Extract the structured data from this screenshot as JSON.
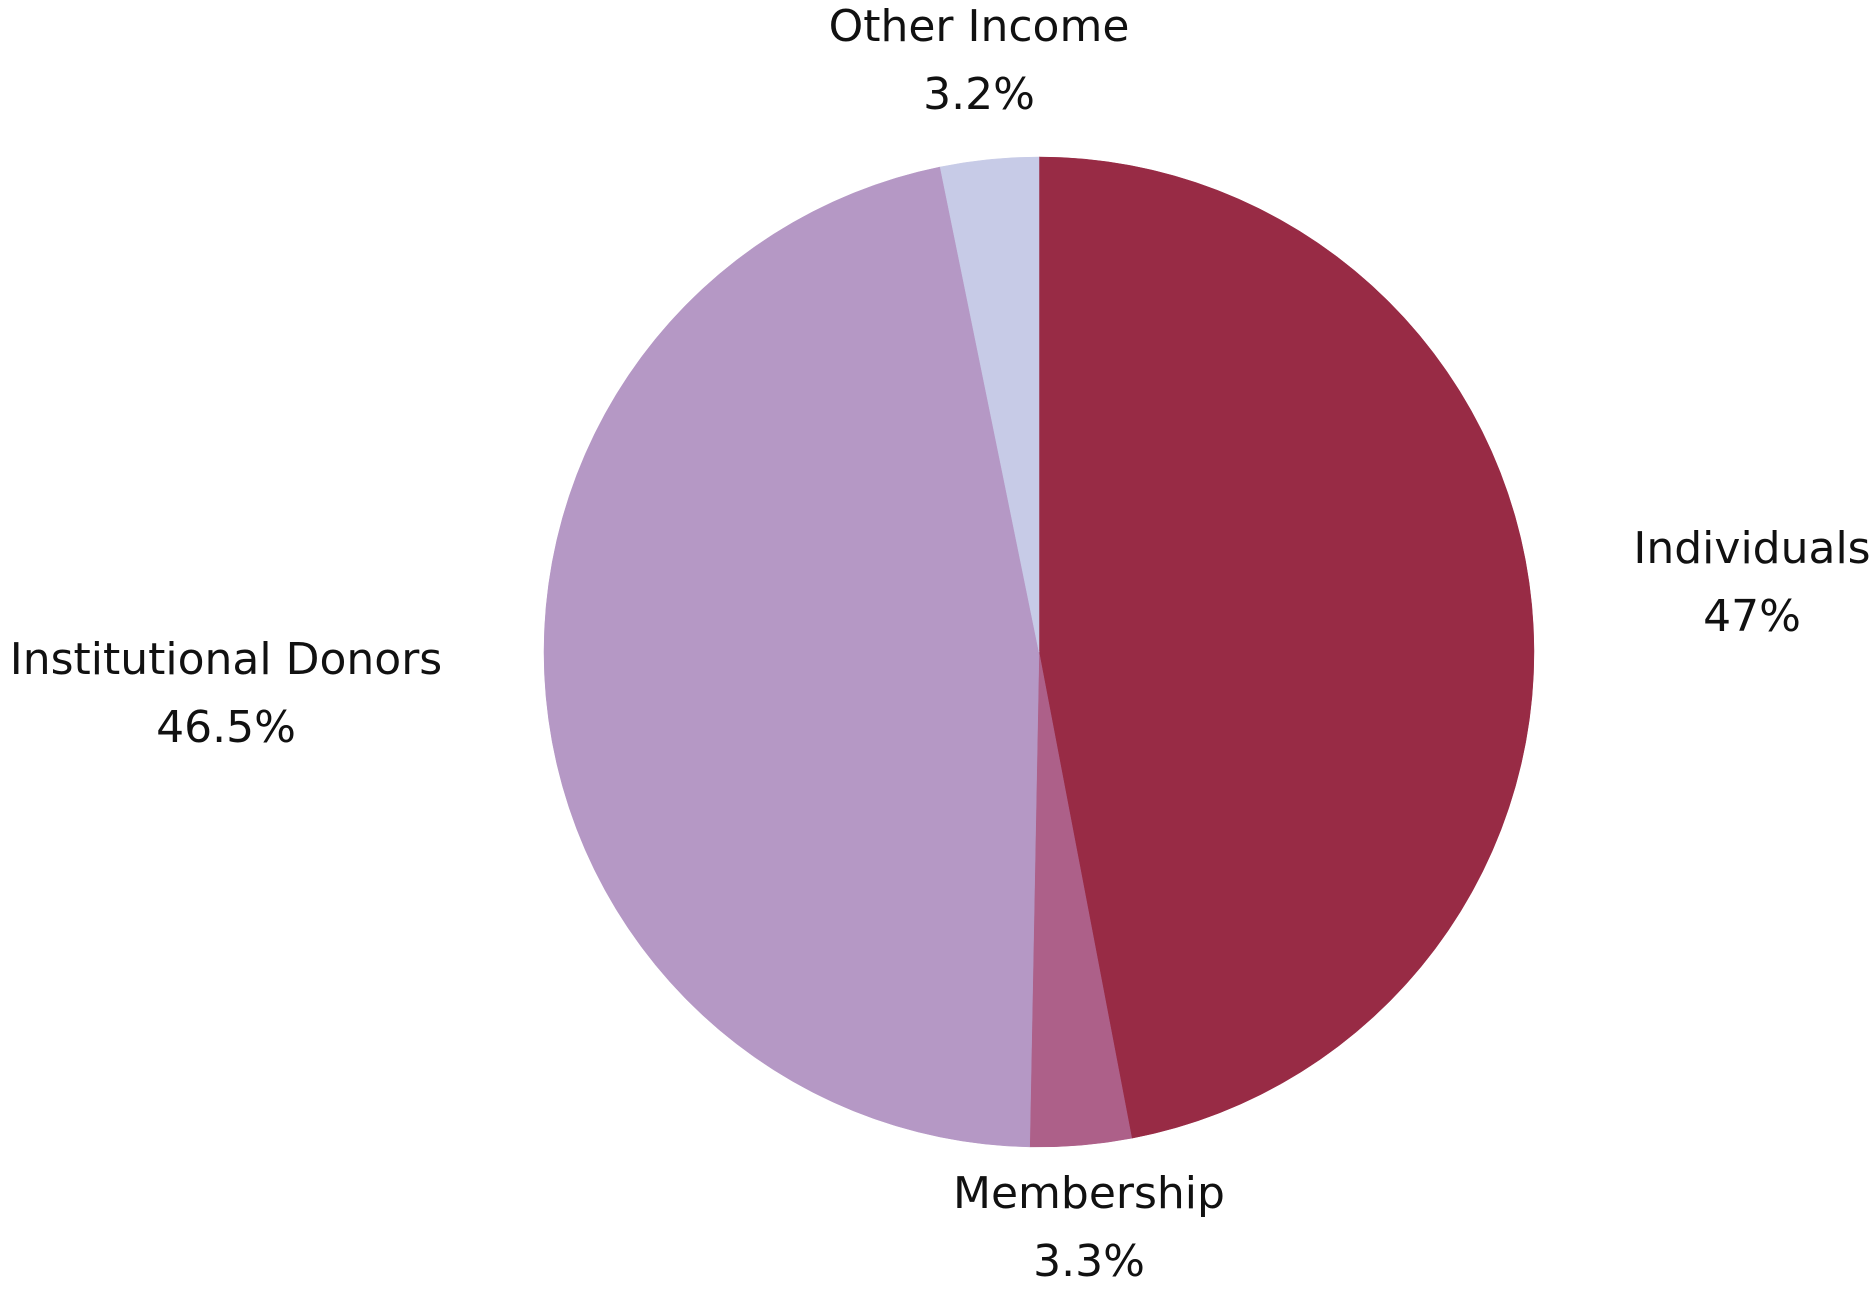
{
  "chart_data": {
    "type": "pie",
    "title": "",
    "start_angle_deg": 0,
    "direction": "clockwise",
    "slices": [
      {
        "label": "Individuals",
        "value": 47.0,
        "value_label": "47%",
        "color": "#982b45"
      },
      {
        "label": "Membership",
        "value": 3.3,
        "value_label": "3.3%",
        "color": "#ad6089"
      },
      {
        "label": "Institutional Donors",
        "value": 46.5,
        "value_label": "46.5%",
        "color": "#b598c5"
      },
      {
        "label": "Other Income",
        "value": 3.2,
        "value_label": "3.2%",
        "color": "#c7cbe7"
      }
    ]
  }
}
